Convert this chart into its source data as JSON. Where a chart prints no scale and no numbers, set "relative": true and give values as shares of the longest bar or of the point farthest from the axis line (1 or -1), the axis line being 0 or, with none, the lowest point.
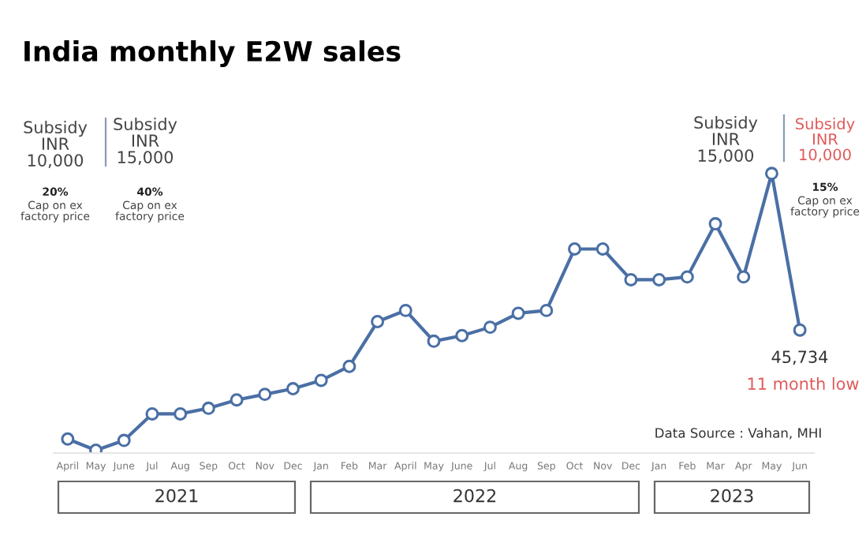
{
  "chart_data": {
    "type": "line",
    "title": "India monthly E2W sales",
    "relative": true,
    "categories": [
      "April",
      "May",
      "June",
      "Jul",
      "Aug",
      "Sep",
      "Oct",
      "Nov",
      "Dec",
      "Jan",
      "Feb",
      "Mar",
      "April",
      "May",
      "June",
      "Jul",
      "Aug",
      "Sep",
      "Oct",
      "Nov",
      "Dec",
      "Jan",
      "Feb",
      "Mar",
      "Apr",
      "May",
      "Jun"
    ],
    "series": [
      {
        "color": "#4a6fa5",
        "values": [
          0.05,
          0.01,
          0.045,
          0.14,
          0.14,
          0.16,
          0.19,
          0.21,
          0.23,
          0.26,
          0.31,
          0.47,
          0.51,
          0.4,
          0.42,
          0.45,
          0.5,
          0.51,
          0.73,
          0.73,
          0.62,
          0.62,
          0.63,
          0.82,
          0.63,
          1.0,
          0.44
        ]
      }
    ],
    "marker": "circle",
    "line_style": "solid",
    "grid": false,
    "legend": false,
    "tick_labels": "x",
    "annotations": [
      "Subsidy\nINR\n10,000",
      "20%",
      "Cap on ex\nfactory price",
      "Subsidy\nINR\n15,000",
      "40%",
      "Cap on ex\nfactory price",
      "Subsidy\nINR\n15,000",
      "Subsidy\nINR\n10,000",
      "15%",
      "Cap on ex\nfactory price",
      "45,734",
      "11 month low",
      "Data Source : Vahan, MHI",
      "2021",
      "2022",
      "2023"
    ]
  }
}
